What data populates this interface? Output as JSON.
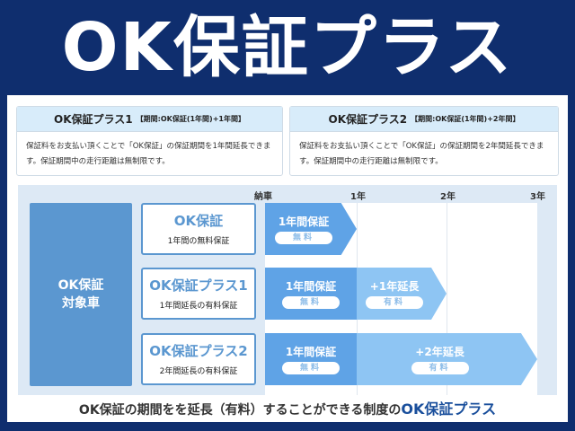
{
  "title": "OK保証プラス",
  "cards": [
    {
      "name": "OK保証プラス1",
      "period": "【期間:OK保証(1年間)+1年間】",
      "desc": "保証料をお支払い頂くことで「OK保証」の保証期間を1年間延長できます。保証期間中の走行距離は無制限です。"
    },
    {
      "name": "OK保証プラス2",
      "period": "【期間:OK保証(1年間)+2年間】",
      "desc": "保証料をお支払い頂くことで「OK保証」の保証期間を2年間延長できます。保証期間中の走行距離は無制限です。"
    }
  ],
  "axis": [
    "納車",
    "1年",
    "2年",
    "3年"
  ],
  "target": {
    "line1": "OK保証",
    "line2": "対象車"
  },
  "rows": [
    {
      "name": "OK保証",
      "sub": "1年間の無料保証",
      "base": "1年間保証",
      "base_fee": "無料",
      "ext": null,
      "ext_fee": null
    },
    {
      "name": "OK保証プラス1",
      "sub": "1年間延長の有料保証",
      "base": "1年間保証",
      "base_fee": "無料",
      "ext": "+1年延長",
      "ext_fee": "有料"
    },
    {
      "name": "OK保証プラス2",
      "sub": "2年間延長の有料保証",
      "base": "1年間保証",
      "base_fee": "無料",
      "ext": "+2年延長",
      "ext_fee": "有料"
    }
  ],
  "caption": {
    "text": "OK保証の期間をを延長（有料）することができる制度の",
    "highlight": "OK保証プラス"
  },
  "colors": {
    "background": "#0f2e6e",
    "accent": "#5b97d0",
    "bar_free": "#5fa3e6",
    "bar_paid": "#8ec5f3"
  }
}
